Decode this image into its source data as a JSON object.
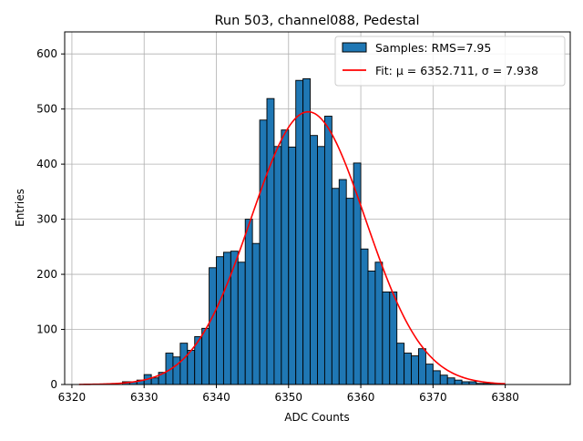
{
  "chart_data": {
    "type": "bar",
    "title": "Run 503, channel088, Pedestal",
    "xlabel": "ADC Counts",
    "ylabel": "Entries",
    "xlim": [
      6319,
      6389
    ],
    "ylim": [
      0,
      640
    ],
    "xticks": [
      6320,
      6330,
      6340,
      6350,
      6360,
      6370,
      6380
    ],
    "yticks": [
      0,
      100,
      200,
      300,
      400,
      500,
      600
    ],
    "grid": true,
    "legend_position": "top-right",
    "legend": {
      "samples_label": "Samples: RMS=7.95",
      "fit_label": "Fit: μ = 6352.711, σ = 7.938"
    },
    "histogram": {
      "bin_width": 1,
      "bin_starts": [
        6327,
        6328,
        6329,
        6330,
        6331,
        6332,
        6333,
        6334,
        6335,
        6336,
        6337,
        6338,
        6339,
        6340,
        6341,
        6342,
        6343,
        6344,
        6345,
        6346,
        6347,
        6348,
        6349,
        6350,
        6351,
        6352,
        6353,
        6354,
        6355,
        6356,
        6357,
        6358,
        6359,
        6360,
        6361,
        6362,
        6363,
        6364,
        6365,
        6366,
        6367,
        6368,
        6369,
        6370,
        6371,
        6372,
        6373,
        6374,
        6375,
        6376,
        6377,
        6378
      ],
      "counts": [
        5,
        5,
        8,
        18,
        12,
        22,
        57,
        50,
        75,
        62,
        87,
        102,
        212,
        232,
        240,
        242,
        222,
        300,
        256,
        480,
        519,
        432,
        462,
        431,
        552,
        555,
        452,
        432,
        487,
        356,
        372,
        338,
        402,
        246,
        206,
        222,
        168,
        168,
        75,
        57,
        52,
        65,
        37,
        25,
        17,
        12,
        8,
        5,
        5,
        2,
        2,
        2
      ],
      "color": "#1f77b4",
      "edge_color": "#000000"
    },
    "fit": {
      "type": "gaussian",
      "mu": 6352.711,
      "sigma": 7.938,
      "amplitude": 495,
      "x_range": [
        6321,
        6380
      ],
      "color": "#ff0000"
    }
  }
}
